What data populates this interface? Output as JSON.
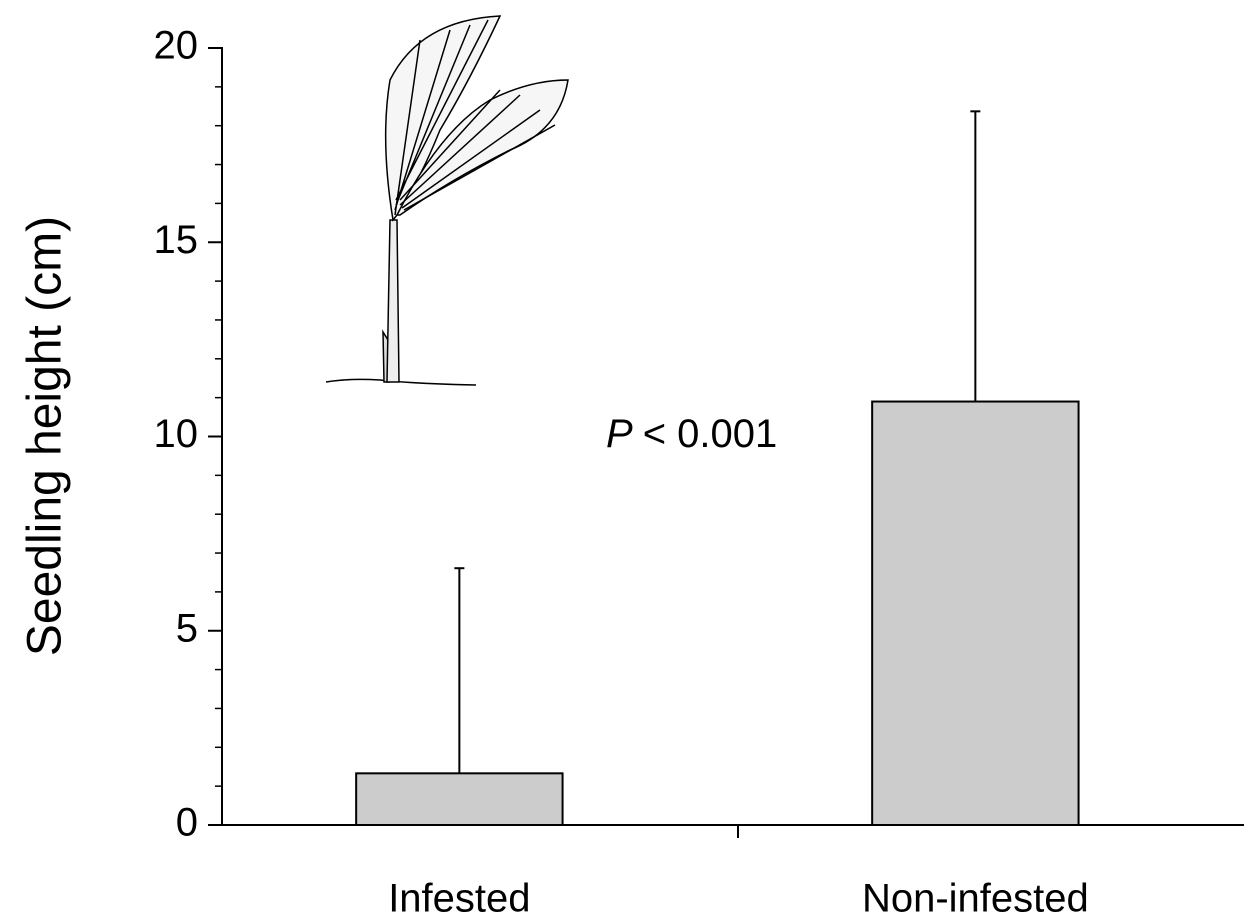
{
  "chart_data": {
    "type": "bar",
    "y_label": "Seedling height (cm)",
    "categories": [
      "Infested",
      "Non-infested"
    ],
    "values": [
      1.33,
      10.9
    ],
    "errors": [
      5.28,
      7.47
    ],
    "color": "#cccccc",
    "ylim": [
      0,
      20
    ],
    "yticks": [
      0,
      5,
      10,
      15,
      20
    ],
    "minor_yticks": [
      1,
      2,
      3,
      4,
      6,
      7,
      8,
      9,
      11,
      12,
      13,
      14,
      16,
      17,
      18,
      19
    ],
    "annotation": {
      "variable": "P",
      "text": "< 0.001"
    }
  }
}
